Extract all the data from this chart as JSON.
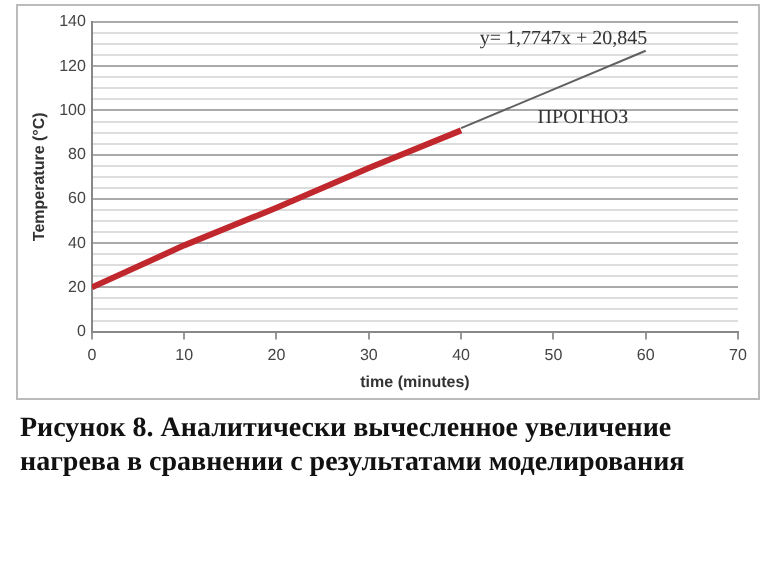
{
  "chart_data": {
    "type": "line",
    "xlabel": "time (minutes)",
    "ylabel": "Temperature (°C)",
    "xlim": [
      0,
      70
    ],
    "xticks": [
      0,
      10,
      20,
      30,
      40,
      50,
      60,
      70
    ],
    "ylim": [
      0,
      140
    ],
    "yticks": [
      0,
      {
        "value": 5,
        "label": null
      },
      {
        "value": 10,
        "label": null
      },
      {
        "value": 15,
        "label": null
      },
      20,
      {
        "value": 25,
        "label": null
      },
      {
        "value": 30,
        "label": null
      },
      {
        "value": 35,
        "label": null
      },
      40,
      {
        "value": 45,
        "label": null
      },
      {
        "value": 50,
        "label": null
      },
      {
        "value": 55,
        "label": null
      },
      60,
      {
        "value": 65,
        "label": null
      },
      {
        "value": 70,
        "label": null
      },
      {
        "value": 75,
        "label": null
      },
      80,
      {
        "value": 85,
        "label": null
      },
      {
        "value": 90,
        "label": null
      },
      {
        "value": 95,
        "label": null
      },
      100,
      {
        "value": 105,
        "label": null
      },
      {
        "value": 110,
        "label": null
      },
      {
        "value": 115,
        "label": null
      },
      120,
      {
        "value": 125,
        "label": null
      },
      {
        "value": 130,
        "label": null
      },
      {
        "value": 135,
        "label": null
      },
      140
    ],
    "grid": "y",
    "marker": "none",
    "legend": false,
    "series": [
      {
        "type": "line",
        "color": "#c0282d",
        "x": [
          0,
          10,
          20,
          30,
          40
        ],
        "values": [
          20,
          39,
          56,
          74,
          91
        ]
      },
      {
        "type": "line",
        "color": "#606060",
        "x": [
          40,
          60
        ],
        "values": [
          92,
          127
        ]
      }
    ],
    "annotations": [
      "y= 1,7747x + 20,845",
      "ПРОГНОЗ",
      "Рисунок 8. Аналитически вычесленное увеличение нагрева в сравнении с результатами моделирования"
    ]
  }
}
